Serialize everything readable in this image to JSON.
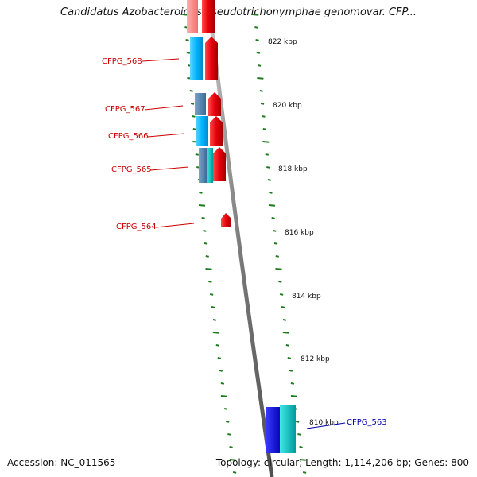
{
  "title": "Candidatus Azobacteroides pseudotrichonymphae genomovar. CFP...",
  "footer": {
    "accession": "Accession: NC_011565",
    "summary": "Topology: circular; Length: 1,114,206 bp; Genes: 800"
  },
  "ticks": [
    "822 kbp",
    "820 kbp",
    "818 kbp",
    "816 kbp",
    "814 kbp",
    "812 kbp",
    "810 kbp"
  ],
  "genes": [
    {
      "label": "CFPG_568",
      "color": "#cc0000"
    },
    {
      "label": "CFPG_567",
      "color": "#cc0000"
    },
    {
      "label": "CFPG_566",
      "color": "#cc0000"
    },
    {
      "label": "CFPG_565",
      "color": "#cc0000"
    },
    {
      "label": "CFPG_564",
      "color": "#cc0000"
    },
    {
      "label": "CFPG_563",
      "color": "#0000aa"
    }
  ],
  "colors": {
    "forward_gene": "#e8000b",
    "cds_light_blue": "#00b4ff",
    "cds_steel_blue": "#4a7fb0",
    "cds_blue": "#0000ee",
    "cds_cyan": "#00c8c8",
    "tick_green": "#1e7a1e",
    "backbone": "#8a8a8a"
  }
}
